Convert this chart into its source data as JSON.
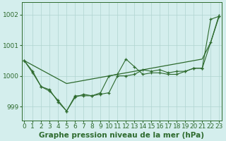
{
  "series_smooth": [
    1000.5,
    1000.35,
    1000.2,
    1000.05,
    999.9,
    999.75,
    999.8,
    999.85,
    999.9,
    999.95,
    1000.0,
    1000.05,
    1000.1,
    1000.15,
    1000.2,
    1000.25,
    1000.3,
    1000.35,
    1000.4,
    1000.45,
    1000.5,
    1000.55,
    1001.1,
    1002.0
  ],
  "series1": [
    1000.5,
    1000.1,
    999.65,
    999.5,
    999.2,
    998.85,
    999.3,
    999.4,
    999.35,
    999.45,
    1000.0,
    1000.05,
    1000.55,
    1000.3,
    1000.05,
    1000.1,
    1000.1,
    1000.05,
    1000.05,
    1000.15,
    1000.25,
    1000.25,
    1001.85,
    1001.95
  ],
  "series2": [
    1000.5,
    1000.15,
    999.65,
    999.55,
    999.15,
    998.85,
    999.35,
    999.35,
    999.35,
    999.4,
    999.45,
    1000.0,
    1000.0,
    1000.05,
    1000.2,
    1000.15,
    1000.2,
    1000.1,
    1000.15,
    1000.15,
    1000.25,
    1000.25,
    1001.1,
    1001.95
  ],
  "x": [
    0,
    1,
    2,
    3,
    4,
    5,
    6,
    7,
    8,
    9,
    10,
    11,
    12,
    13,
    14,
    15,
    16,
    17,
    18,
    19,
    20,
    21,
    22,
    23
  ],
  "line_color": "#2d6a2d",
  "bg_color": "#d4eeed",
  "grid_color": "#afd4d0",
  "ylabel_ticks": [
    999,
    1000,
    1001,
    1002
  ],
  "ylim": [
    998.55,
    1002.4
  ],
  "xlabel": "Graphe pression niveau de la mer (hPa)",
  "xlabel_fontsize": 7.5,
  "tick_fontsize": 6.5
}
